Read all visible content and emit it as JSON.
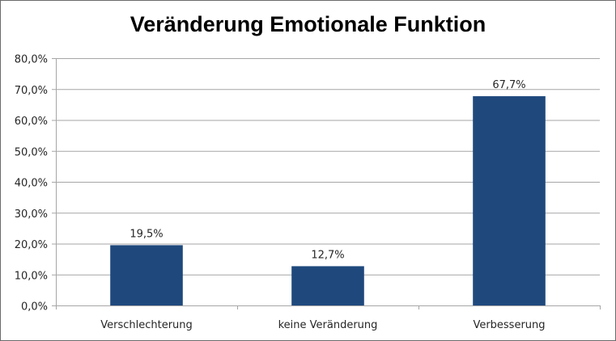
{
  "chart_data": {
    "type": "bar",
    "title": "Veränderung Emotionale Funktion",
    "xlabel": "",
    "ylabel": "",
    "categories": [
      "Verschlechterung",
      "keine Veränderung",
      "Verbesserung"
    ],
    "values": [
      19.5,
      12.7,
      67.7
    ],
    "data_labels": [
      "19,5%",
      "12,7%",
      "67,7%"
    ],
    "ylim": [
      0,
      80
    ],
    "yticks": [
      0,
      10,
      20,
      30,
      40,
      50,
      60,
      70,
      80
    ],
    "ytick_labels": [
      "0,0%",
      "10,0%",
      "20,0%",
      "30,0%",
      "40,0%",
      "50,0%",
      "60,0%",
      "70,0%",
      "80,0%"
    ],
    "grid": true,
    "legend": "none",
    "bar_color": "#1F497D",
    "grid_color": "#A6A6A6"
  }
}
